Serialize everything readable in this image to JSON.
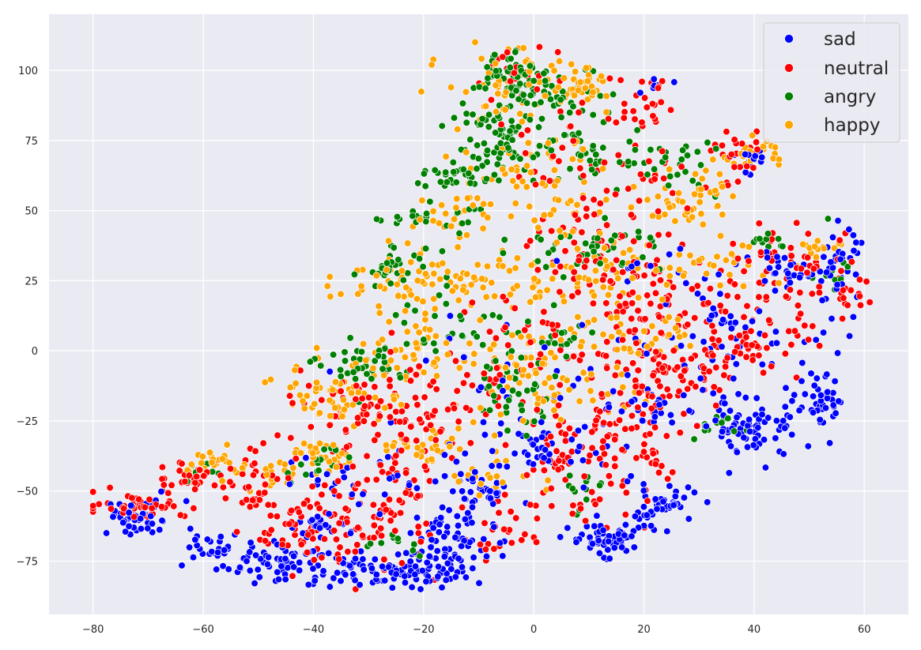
{
  "chart_data": {
    "type": "scatter",
    "title": "",
    "xlabel": "",
    "ylabel": "",
    "xlim": [
      -88,
      68
    ],
    "ylim": [
      -94,
      120
    ],
    "xticks": [
      -80,
      -60,
      -40,
      -20,
      0,
      20,
      40,
      60
    ],
    "yticks": [
      -75,
      -50,
      -25,
      0,
      25,
      50,
      75,
      100
    ],
    "grid": true,
    "background_color": "#eaeaf2",
    "grid_color": "#ffffff",
    "legend_position": "top-right",
    "series": [
      {
        "name": "sad",
        "color": "#0000ff",
        "regions": [
          {
            "cx": -72,
            "cy": -60,
            "rx": 8,
            "ry": 6,
            "n": 45
          },
          {
            "cx": -58,
            "cy": -70,
            "rx": 5,
            "ry": 4,
            "n": 20
          },
          {
            "cx": -46,
            "cy": -76,
            "rx": 10,
            "ry": 7,
            "n": 75
          },
          {
            "cx": -38,
            "cy": -62,
            "rx": 6,
            "ry": 4,
            "n": 25
          },
          {
            "cx": -26,
            "cy": -78,
            "rx": 11,
            "ry": 6,
            "n": 70
          },
          {
            "cx": -16,
            "cy": -70,
            "rx": 8,
            "ry": 13,
            "n": 90
          },
          {
            "cx": -10,
            "cy": -50,
            "rx": 6,
            "ry": 7,
            "n": 35
          },
          {
            "cx": 2,
            "cy": -36,
            "rx": 7,
            "ry": 7,
            "n": 30
          },
          {
            "cx": 13,
            "cy": -67,
            "rx": 7,
            "ry": 5,
            "n": 60
          },
          {
            "cx": 23,
            "cy": -55,
            "rx": 6,
            "ry": 6,
            "n": 45
          },
          {
            "cx": 20,
            "cy": -22,
            "rx": 6,
            "ry": 6,
            "n": 25
          },
          {
            "cx": 40,
            "cy": -27,
            "rx": 7,
            "ry": 10,
            "n": 70
          },
          {
            "cx": 52,
            "cy": -20,
            "rx": 4,
            "ry": 10,
            "n": 40
          },
          {
            "cx": 36,
            "cy": 8,
            "rx": 7,
            "ry": 8,
            "n": 25
          },
          {
            "cx": 45,
            "cy": 28,
            "rx": 5,
            "ry": 5,
            "n": 25
          },
          {
            "cx": 55,
            "cy": 28,
            "rx": 4,
            "ry": 16,
            "n": 40
          },
          {
            "cx": 40,
            "cy": 69,
            "rx": 3,
            "ry": 6,
            "n": 15
          },
          {
            "cx": 22,
            "cy": 96,
            "rx": 3,
            "ry": 3,
            "n": 6
          },
          {
            "cx": 35,
            "cy": -5,
            "rx": 20,
            "ry": 12,
            "n": 35
          },
          {
            "cx": 0,
            "cy": -20,
            "rx": 28,
            "ry": 30,
            "n": 50
          },
          {
            "cx": 25,
            "cy": 25,
            "rx": 20,
            "ry": 15,
            "n": 20
          },
          {
            "cx": -30,
            "cy": -45,
            "rx": 15,
            "ry": 10,
            "n": 30
          }
        ]
      },
      {
        "name": "neutral",
        "color": "#ff0000",
        "regions": [
          {
            "cx": -72,
            "cy": -55,
            "rx": 8,
            "ry": 4,
            "n": 45
          },
          {
            "cx": -62,
            "cy": -45,
            "rx": 6,
            "ry": 6,
            "n": 40
          },
          {
            "cx": -50,
            "cy": -48,
            "rx": 5,
            "ry": 10,
            "n": 35
          },
          {
            "cx": -42,
            "cy": -65,
            "rx": 8,
            "ry": 12,
            "n": 55
          },
          {
            "cx": -28,
            "cy": -55,
            "rx": 10,
            "ry": 20,
            "n": 100
          },
          {
            "cx": -20,
            "cy": -25,
            "rx": 10,
            "ry": 12,
            "n": 45
          },
          {
            "cx": -5,
            "cy": -65,
            "rx": 6,
            "ry": 10,
            "n": 25
          },
          {
            "cx": 6,
            "cy": -40,
            "rx": 8,
            "ry": 18,
            "n": 60
          },
          {
            "cx": 18,
            "cy": -30,
            "rx": 10,
            "ry": 30,
            "n": 90
          },
          {
            "cx": 28,
            "cy": -10,
            "rx": 10,
            "ry": 10,
            "n": 50
          },
          {
            "cx": 22,
            "cy": 15,
            "rx": 15,
            "ry": 20,
            "n": 90
          },
          {
            "cx": 10,
            "cy": 35,
            "rx": 10,
            "ry": 15,
            "n": 50
          },
          {
            "cx": 40,
            "cy": 5,
            "rx": 10,
            "ry": 10,
            "n": 50
          },
          {
            "cx": 47,
            "cy": 28,
            "rx": 12,
            "ry": 15,
            "n": 60
          },
          {
            "cx": 58,
            "cy": 18,
            "rx": 3,
            "ry": 5,
            "n": 12
          },
          {
            "cx": 38,
            "cy": 70,
            "rx": 5,
            "ry": 6,
            "n": 25
          },
          {
            "cx": 20,
            "cy": 88,
            "rx": 6,
            "ry": 10,
            "n": 25
          },
          {
            "cx": -5,
            "cy": 100,
            "rx": 6,
            "ry": 8,
            "n": 15
          },
          {
            "cx": 5,
            "cy": 80,
            "rx": 15,
            "ry": 20,
            "n": 25
          },
          {
            "cx": 18,
            "cy": 60,
            "rx": 15,
            "ry": 15,
            "n": 40
          },
          {
            "cx": -35,
            "cy": -20,
            "rx": 12,
            "ry": 10,
            "n": 50
          },
          {
            "cx": 0,
            "cy": 5,
            "rx": 20,
            "ry": 15,
            "n": 40
          },
          {
            "cx": -10,
            "cy": -10,
            "rx": 15,
            "ry": 10,
            "n": 25
          }
        ]
      },
      {
        "name": "angry",
        "color": "#008000",
        "regions": [
          {
            "cx": -5,
            "cy": 100,
            "rx": 5,
            "ry": 8,
            "n": 55
          },
          {
            "cx": -8,
            "cy": 75,
            "rx": 8,
            "ry": 15,
            "n": 75
          },
          {
            "cx": -15,
            "cy": 62,
            "rx": 6,
            "ry": 4,
            "n": 25
          },
          {
            "cx": 5,
            "cy": 90,
            "rx": 8,
            "ry": 10,
            "n": 45
          },
          {
            "cx": 10,
            "cy": 70,
            "rx": 8,
            "ry": 12,
            "n": 45
          },
          {
            "cx": -20,
            "cy": 48,
            "rx": 8,
            "ry": 4,
            "n": 25
          },
          {
            "cx": -25,
            "cy": 30,
            "rx": 8,
            "ry": 6,
            "n": 30
          },
          {
            "cx": 10,
            "cy": 37,
            "rx": 12,
            "ry": 8,
            "n": 40
          },
          {
            "cx": -30,
            "cy": -5,
            "rx": 8,
            "ry": 10,
            "n": 40
          },
          {
            "cx": -5,
            "cy": -15,
            "rx": 8,
            "ry": 12,
            "n": 40
          },
          {
            "cx": 5,
            "cy": 5,
            "rx": 6,
            "ry": 8,
            "n": 20
          },
          {
            "cx": -40,
            "cy": -40,
            "rx": 5,
            "ry": 8,
            "n": 15
          },
          {
            "cx": 25,
            "cy": 65,
            "rx": 8,
            "ry": 10,
            "n": 25
          },
          {
            "cx": 45,
            "cy": 40,
            "rx": 8,
            "ry": 3,
            "n": 12
          },
          {
            "cx": 55,
            "cy": 28,
            "rx": 3,
            "ry": 5,
            "n": 10
          },
          {
            "cx": -15,
            "cy": 10,
            "rx": 10,
            "ry": 10,
            "n": 25
          },
          {
            "cx": -60,
            "cy": -42,
            "rx": 4,
            "ry": 3,
            "n": 8
          },
          {
            "cx": -25,
            "cy": -70,
            "rx": 8,
            "ry": 6,
            "n": 12
          },
          {
            "cx": 10,
            "cy": -50,
            "rx": 8,
            "ry": 8,
            "n": 12
          },
          {
            "cx": 32,
            "cy": -28,
            "rx": 6,
            "ry": 6,
            "n": 12
          }
        ]
      },
      {
        "name": "happy",
        "color": "#ffa500",
        "regions": [
          {
            "cx": -5,
            "cy": 95,
            "rx": 10,
            "ry": 12,
            "n": 55
          },
          {
            "cx": 8,
            "cy": 95,
            "rx": 6,
            "ry": 8,
            "n": 35
          },
          {
            "cx": 0,
            "cy": 60,
            "rx": 12,
            "ry": 15,
            "n": 60
          },
          {
            "cx": -15,
            "cy": 48,
            "rx": 8,
            "ry": 6,
            "n": 25
          },
          {
            "cx": -25,
            "cy": 25,
            "rx": 10,
            "ry": 10,
            "n": 55
          },
          {
            "cx": -5,
            "cy": 25,
            "rx": 12,
            "ry": 10,
            "n": 50
          },
          {
            "cx": 15,
            "cy": 30,
            "rx": 12,
            "ry": 15,
            "n": 55
          },
          {
            "cx": 28,
            "cy": 55,
            "rx": 8,
            "ry": 10,
            "n": 45
          },
          {
            "cx": 40,
            "cy": 70,
            "rx": 5,
            "ry": 5,
            "n": 20
          },
          {
            "cx": -35,
            "cy": -15,
            "rx": 10,
            "ry": 10,
            "n": 60
          },
          {
            "cx": -20,
            "cy": 0,
            "rx": 12,
            "ry": 10,
            "n": 45
          },
          {
            "cx": 0,
            "cy": -5,
            "rx": 12,
            "ry": 15,
            "n": 55
          },
          {
            "cx": -58,
            "cy": -40,
            "rx": 5,
            "ry": 5,
            "n": 25
          },
          {
            "cx": -48,
            "cy": -45,
            "rx": 5,
            "ry": 5,
            "n": 20
          },
          {
            "cx": -38,
            "cy": -38,
            "rx": 6,
            "ry": 5,
            "n": 30
          },
          {
            "cx": -20,
            "cy": -35,
            "rx": 8,
            "ry": 6,
            "n": 30
          },
          {
            "cx": 20,
            "cy": 5,
            "rx": 10,
            "ry": 10,
            "n": 35
          },
          {
            "cx": 35,
            "cy": 30,
            "rx": 8,
            "ry": 10,
            "n": 25
          },
          {
            "cx": 50,
            "cy": 35,
            "rx": 5,
            "ry": 5,
            "n": 15
          },
          {
            "cx": -10,
            "cy": -45,
            "rx": 8,
            "ry": 8,
            "n": 20
          },
          {
            "cx": 5,
            "cy": -20,
            "rx": 15,
            "ry": 10,
            "n": 25
          }
        ]
      }
    ]
  }
}
